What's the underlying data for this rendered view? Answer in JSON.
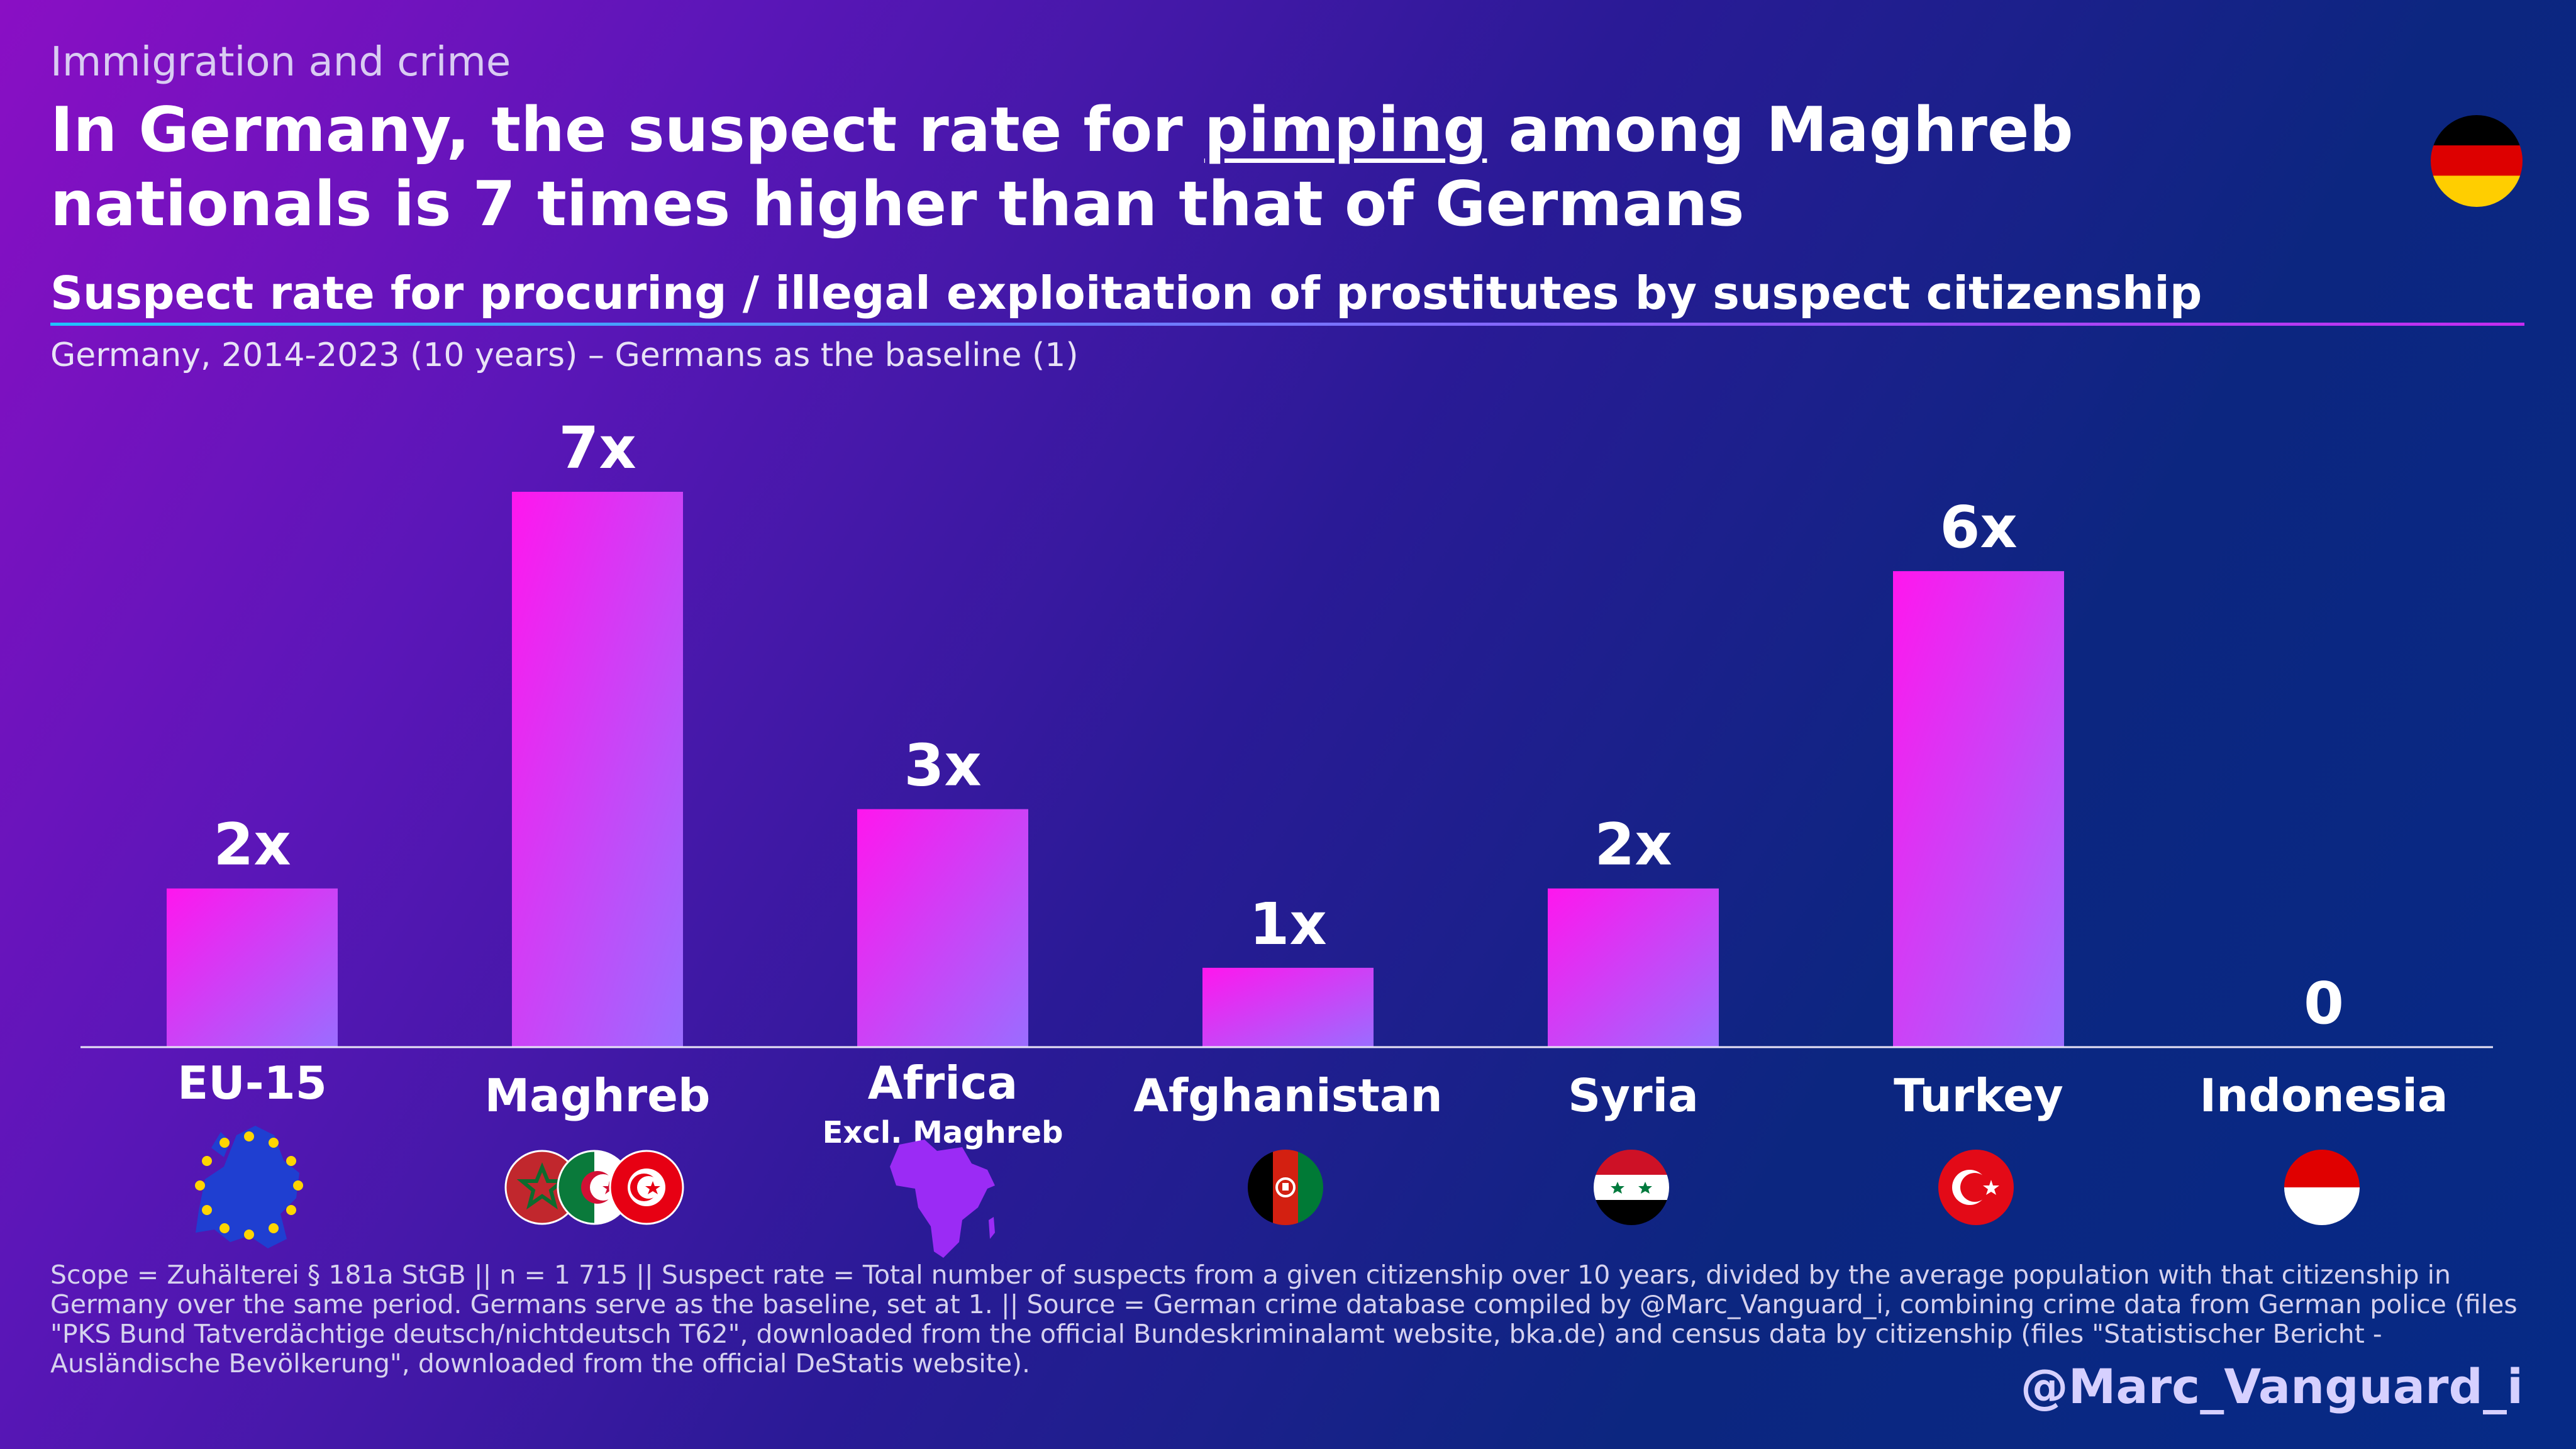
{
  "header": {
    "kicker": "Immigration and crime",
    "headline_part1": "In Germany, the suspect rate for ",
    "headline_emph": "pimping",
    "headline_part2": " among Maghreb nationals is 7 times higher than that of Germans",
    "subtitle": "Suspect rate for procuring / illegal exploitation of prostitutes by suspect citizenship",
    "description": "Germany, 2014-2023 (10 years) – Germans as the baseline (1)"
  },
  "chart_data": {
    "type": "bar",
    "categories": [
      "EU-15",
      "Maghreb",
      "Africa",
      "Afghanistan",
      "Syria",
      "Turkey",
      "Indonesia"
    ],
    "category_sublabels": [
      "",
      "",
      "Excl. Maghreb",
      "",
      "",
      "",
      ""
    ],
    "values": [
      2,
      7,
      3,
      1,
      2,
      6,
      0
    ],
    "data_labels": [
      "2x",
      "7x",
      "3x",
      "1x",
      "2x",
      "6x",
      "0"
    ],
    "icons": [
      "eu-map-icon",
      "maghreb-flags-icon",
      "africa-map-icon",
      "afghanistan-flag-icon",
      "syria-flag-icon",
      "turkey-flag-icon",
      "indonesia-flag-icon"
    ],
    "ylim": [
      0,
      8
    ],
    "grid": false,
    "legend": "none",
    "bar_gradient": [
      "#ff16ee",
      "#9a6dff"
    ]
  },
  "footer": {
    "footnote": "Scope = Zuhälterei § 181a StGB || n = 1 715 || Suspect rate = Total number of suspects from a given citizenship over 10 years, divided by the average population with that citizenship in Germany over the same period. Germans serve as the baseline, set at 1. || Source = German crime database compiled by @Marc_Vanguard_i, combining crime data from German police (files \"PKS Bund Tatverdächtige deutsch/nichtdeutsch T62\", downloaded from the official Bundeskriminalamt website, bka.de) and census data by citizenship (files \"Statistischer Bericht - Ausländische Bevölkerung\", downloaded from the official DeStatis website).",
    "handle": "@Marc_Vanguard_i"
  },
  "flag_icon": "germany-flag-icon"
}
